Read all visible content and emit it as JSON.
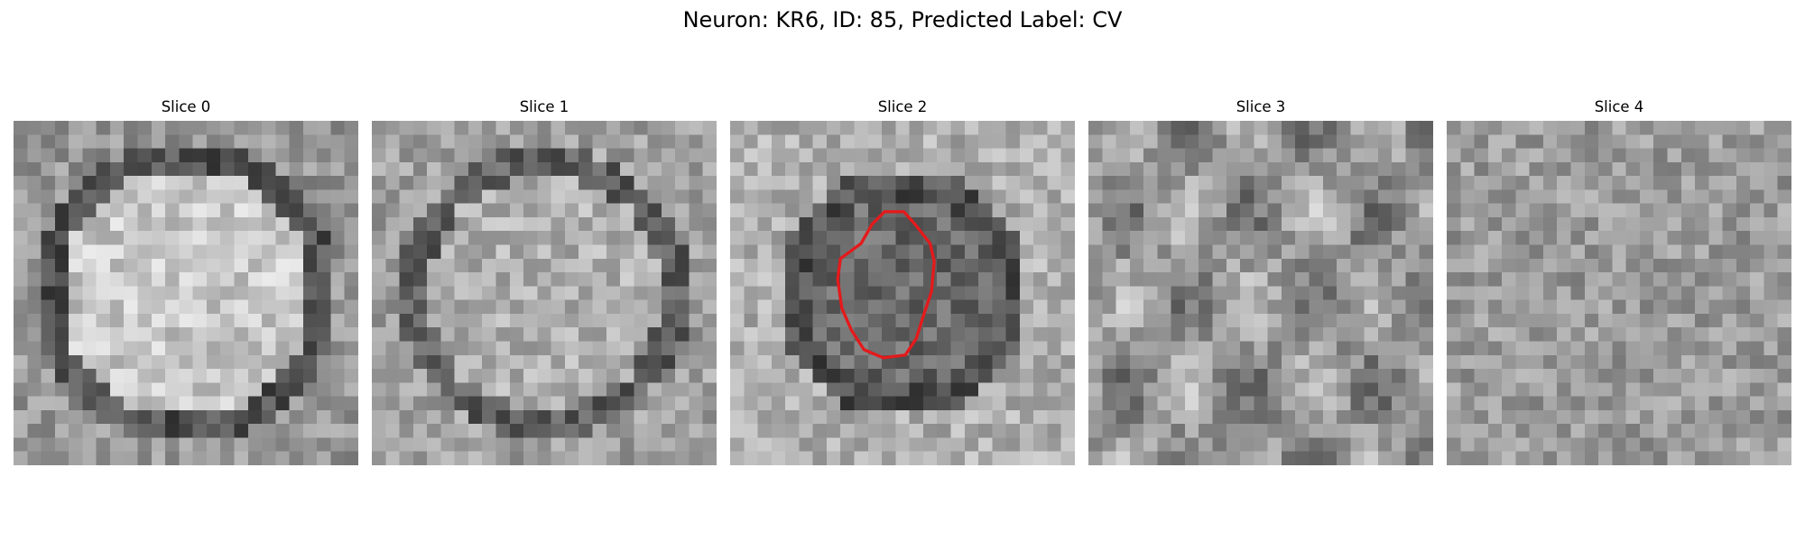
{
  "figure": {
    "title": "Neuron: KR6, ID: 85, Predicted Label: CV"
  },
  "panels": [
    {
      "title": "Slice 0",
      "seed": 11,
      "pattern": "bright-ring",
      "contour": false
    },
    {
      "title": "Slice 1",
      "seed": 23,
      "pattern": "soft-ring",
      "contour": false
    },
    {
      "title": "Slice 2",
      "seed": 37,
      "pattern": "dark-center",
      "contour": true
    },
    {
      "title": "Slice 3",
      "seed": 53,
      "pattern": "textured",
      "contour": false
    },
    {
      "title": "Slice 4",
      "seed": 71,
      "pattern": "noise",
      "contour": false
    }
  ],
  "colors": {
    "contour": "#e41a1c",
    "colormap": "gray"
  },
  "grid_size": 25
}
